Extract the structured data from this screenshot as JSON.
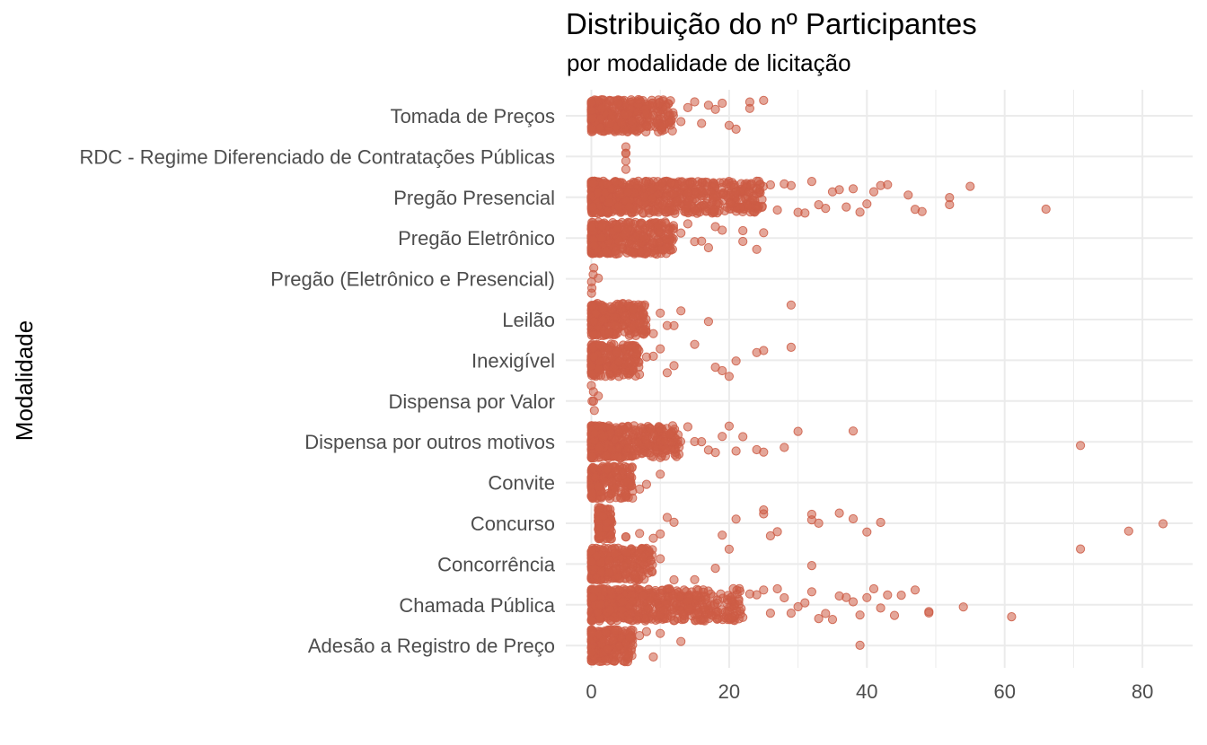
{
  "chart_data": {
    "type": "scatter",
    "title": "Distribuição do nº Participantes",
    "subtitle": "por modalidade de licitação",
    "xlabel": "",
    "ylabel": "Modalidade",
    "xlim": [
      0,
      85
    ],
    "x_ticks": [
      0,
      20,
      40,
      60,
      80
    ],
    "grid": true,
    "color": "#cd5c45",
    "categories": [
      "Adesão a Registro de Preço",
      "Chamada Pública",
      "Concorrência",
      "Concurso",
      "Convite",
      "Dispensa por outros motivos",
      "Dispensa por Valor",
      "Inexigível",
      "Leilão",
      "Pregão (Eletrônico e Presencial)",
      "Pregão Eletrônico",
      "Pregão Presencial",
      "RDC - Regime Diferenciado de Contratações Públicas",
      "Tomada de Preços"
    ],
    "series": [
      {
        "category": "Tomada de Preços",
        "dense_range": [
          0,
          12
        ],
        "outliers": [
          13,
          14,
          15,
          16,
          17,
          18,
          19,
          20,
          21,
          23,
          23,
          25
        ]
      },
      {
        "category": "RDC - Regime Diferenciado de Contratações Públicas",
        "dense_range": [
          5,
          5
        ],
        "outliers": []
      },
      {
        "category": "Pregão Presencial",
        "dense_range": [
          0,
          25
        ],
        "outliers": [
          26,
          27,
          28,
          29,
          30,
          31,
          32,
          33,
          34,
          35,
          36,
          37,
          38,
          39,
          40,
          41,
          42,
          43,
          46,
          47,
          48,
          52,
          52,
          55,
          66
        ]
      },
      {
        "category": "Pregão Eletrônico",
        "dense_range": [
          0,
          12
        ],
        "outliers": [
          13,
          14,
          15,
          16,
          17,
          18,
          19,
          22,
          22,
          24,
          25
        ]
      },
      {
        "category": "Pregão (Eletrônico e Presencial)",
        "dense_range": [
          0,
          1
        ],
        "outliers": [
          1
        ]
      },
      {
        "category": "Leilão",
        "dense_range": [
          0,
          8
        ],
        "outliers": [
          9,
          10,
          11,
          12,
          13,
          17,
          29
        ]
      },
      {
        "category": "Inexigível",
        "dense_range": [
          0,
          7
        ],
        "outliers": [
          8,
          9,
          10,
          11,
          12,
          15,
          18,
          19,
          20,
          21,
          24,
          25,
          29
        ]
      },
      {
        "category": "Dispensa por Valor",
        "dense_range": [
          0,
          1
        ],
        "outliers": [
          1
        ]
      },
      {
        "category": "Dispensa por outros motivos",
        "dense_range": [
          0,
          13
        ],
        "outliers": [
          14,
          15,
          16,
          17,
          18,
          19,
          20,
          21,
          22,
          24,
          25,
          28,
          30,
          38,
          71
        ]
      },
      {
        "category": "Convite",
        "dense_range": [
          0,
          6
        ],
        "outliers": [
          7,
          8,
          10
        ]
      },
      {
        "category": "Concurso",
        "dense_range": [
          1,
          3
        ],
        "outliers": [
          5,
          7,
          9,
          10,
          11,
          12,
          19,
          21,
          25,
          25,
          26,
          27,
          32,
          32,
          33,
          36,
          38,
          40,
          42,
          78,
          83,
          5
        ]
      },
      {
        "category": "Concorrência",
        "dense_range": [
          0,
          9
        ],
        "outliers": [
          10,
          12,
          15,
          18,
          20,
          32,
          71
        ]
      },
      {
        "category": "Chamada Pública",
        "dense_range": [
          0,
          22
        ],
        "outliers": [
          23,
          24,
          25,
          26,
          27,
          28,
          29,
          30,
          31,
          32,
          33,
          34,
          35,
          36,
          37,
          38,
          39,
          40,
          41,
          42,
          43,
          44,
          45,
          47,
          49,
          49,
          54,
          61
        ]
      },
      {
        "category": "Adesão a Registro de Preço",
        "dense_range": [
          0,
          6
        ],
        "outliers": [
          7,
          8,
          9,
          10,
          13,
          39
        ]
      }
    ]
  }
}
